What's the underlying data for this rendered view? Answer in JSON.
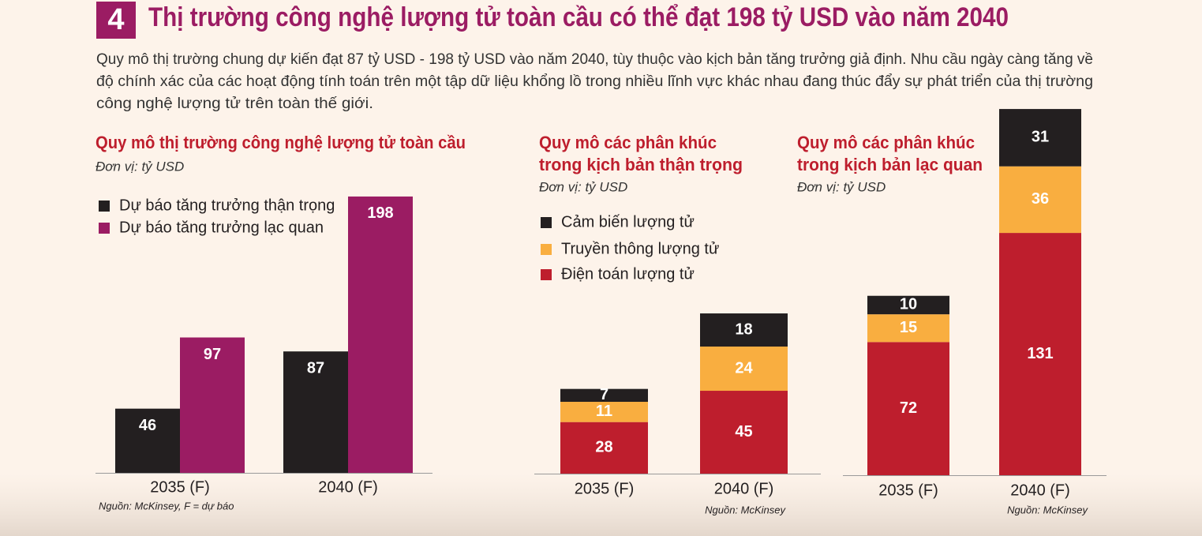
{
  "header": {
    "number": "4",
    "title": "Thị trường công nghệ lượng tử toàn cầu có thể đạt 198 tỷ USD vào năm 2040",
    "intro": [
      "Quy mô thị trường chung dự kiến đạt 87 tỷ USD - 198 tỷ USD vào năm 2040, tùy thuộc vào kịch bản tăng trưởng giả định. Nhu cầu ngày càng tăng về",
      "độ chính xác của các hoạt động tính toán trên một tập dữ liệu khổng lồ trong nhiều lĩnh vực khác nhau đang thúc đẩy sự phát triển của thị trường",
      "công nghệ lượng tử trên toàn thế giới."
    ]
  },
  "chart_data": [
    {
      "type": "grouped-bar",
      "title": [
        "Quy mô thị trường công nghệ lượng tử toàn cầu"
      ],
      "unit": "Đơn vị: tỷ USD",
      "categories": [
        "2035 (F)",
        "2040 (F)"
      ],
      "series": [
        {
          "name": "Dự báo tăng trưởng thận trọng",
          "color": "#231f20",
          "values": [
            46,
            87
          ]
        },
        {
          "name": "Dự báo tăng trưởng lạc quan",
          "color": "#9b1c63",
          "values": [
            97,
            198
          ]
        }
      ],
      "source": "Nguồn: McKinsey, F = dự báo"
    },
    {
      "type": "stacked-bar",
      "title": [
        "Quy mô các phân khúc",
        "trong kịch bản thận trọng"
      ],
      "unit": "Đơn vị: tỷ USD",
      "categories": [
        "2035 (F)",
        "2040 (F)"
      ],
      "series": [
        {
          "name": "Cảm biến lượng tử",
          "color": "#231f20",
          "values": [
            7,
            18
          ]
        },
        {
          "name": "Truyền thông lượng tử",
          "color": "#f9ae40",
          "values": [
            11,
            24
          ]
        },
        {
          "name": "Điện toán lượng tử",
          "color": "#be1e2d",
          "values": [
            28,
            45
          ]
        }
      ],
      "source": "Nguồn: McKinsey"
    },
    {
      "type": "stacked-bar",
      "title": [
        "Quy mô các phân khúc",
        "trong kịch bản lạc quan"
      ],
      "unit": "Đơn vị: tỷ USD",
      "categories": [
        "2035 (F)",
        "2040 (F)"
      ],
      "series": [
        {
          "color": "#231f20",
          "values": [
            10,
            31
          ]
        },
        {
          "color": "#f9ae40",
          "values": [
            15,
            36
          ]
        },
        {
          "color": "#be1e2d",
          "values": [
            72,
            131
          ]
        }
      ],
      "source": "Nguồn: McKinsey"
    }
  ]
}
